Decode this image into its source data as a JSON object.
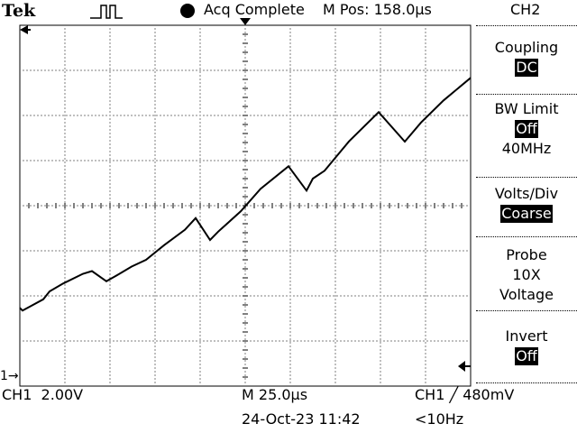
{
  "header": {
    "brand": "Tek",
    "trigger_status_icon": "pulse-icon",
    "acq_status_icon": "filled-circle-icon",
    "acq_status": "Acq Complete",
    "position_label": "M Pos: 158.0µs",
    "channel": "CH2"
  },
  "side_menu": [
    {
      "title": "Coupling",
      "value": "DC",
      "extra": ""
    },
    {
      "title": "BW Limit",
      "value": "Off",
      "extra": "40MHz"
    },
    {
      "title": "Volts/Div",
      "value": "Coarse",
      "extra": ""
    },
    {
      "title": "Probe",
      "value": "",
      "lines": [
        "10X",
        "Voltage"
      ]
    },
    {
      "title": "Invert",
      "value": "Off",
      "extra": ""
    }
  ],
  "footer": {
    "ch1_scale": "CH1  2.00V",
    "time_base": "M 25.0µs",
    "trigger": "CH1 ╱ 480mV",
    "date_time": "24-Oct-23 11:42",
    "freq": "<10Hz"
  },
  "markers": {
    "ch1_ground": "1→",
    "trigger_position_icon": "trigger-arrow-down-icon",
    "trigger_level_icon": "trigger-arrow-left-icon"
  },
  "colors": {
    "background": "#ffffff",
    "trace": "#000000",
    "grid": "#000000"
  },
  "waveform": {
    "x": [
      0,
      3,
      10,
      26,
      33,
      48,
      70,
      80,
      96,
      108,
      124,
      140,
      160,
      183,
      195,
      211,
      220,
      245,
      267,
      298,
      318,
      325,
      338,
      365,
      398,
      427,
      445,
      470,
      500
    ],
    "y": [
      3.87,
      3.75,
      3.9,
      4.25,
      4.6,
      4.95,
      5.38,
      5.5,
      5.05,
      5.32,
      5.7,
      6.0,
      6.65,
      7.33,
      7.85,
      6.88,
      7.25,
      8.15,
      9.15,
      10.15,
      9.07,
      9.6,
      9.95,
      11.25,
      12.55,
      11.24,
      12.09,
      13.07,
      14.07
    ],
    "x_divisions": 10,
    "y_divisions": 8
  }
}
